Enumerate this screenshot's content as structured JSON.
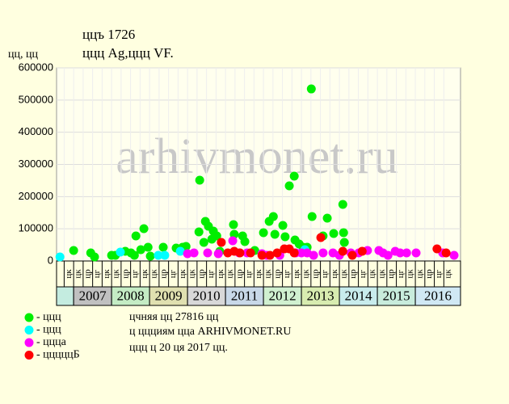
{
  "chart_data": {
    "type": "scatter",
    "title": "ццъ 1726",
    "subtitle": "ццц Ag,ццц VF.",
    "y_label": "цц, цц",
    "watermark": "arhivmonet.ru",
    "notes": [
      "цчняя цц 27816 цц",
      "ц ццциям цца ARHIVMONET.RU",
      "ццц ц 20 ця 2017 цц."
    ],
    "xlim": [
      2006.55,
      2017.19
    ],
    "xticks": [
      2007,
      2008,
      2009,
      2010,
      2011,
      2012,
      2013,
      2014,
      2015,
      2016
    ],
    "band_colors": [
      "#c0c0c0",
      "#c4ecc4",
      "#e0e0b0",
      "#d8d8d8",
      "#c8d8e8",
      "#d0f0d0",
      "#d8ecb0",
      "#c8ecec",
      "#c8ecdc",
      "#d0e8f4"
    ],
    "lead_band_color": "#c4ece0",
    "quarter_labels": [
      "цк",
      "цр",
      "цг",
      "цк"
    ],
    "ylim": [
      0,
      600000
    ],
    "yticks": [
      0,
      100000,
      200000,
      300000,
      400000,
      500000,
      600000
    ],
    "grid": true,
    "series": [
      {
        "name": "- ццц",
        "color": "#00ee00",
        "x": [
          2007.0,
          2007.45,
          2007.55,
          2008.0,
          2008.1,
          2008.36,
          2008.51,
          2008.6,
          2008.64,
          2008.77,
          2008.85,
          2008.96,
          2009.02,
          2009.36,
          2009.7,
          2009.87,
          2009.96,
          2010.3,
          2010.32,
          2010.43,
          2010.47,
          2010.55,
          2010.64,
          2010.68,
          2010.77,
          2010.85,
          2011.21,
          2011.23,
          2011.45,
          2011.51,
          2011.77,
          2012.0,
          2012.15,
          2012.26,
          2012.3,
          2012.51,
          2012.57,
          2012.68,
          2012.81,
          2012.83,
          2012.94,
          2013.26,
          2013.28,
          2013.57,
          2013.68,
          2013.85,
          2014.09,
          2014.11,
          2014.13,
          2013.15,
          2013.04
        ],
        "values": [
          32600,
          25100,
          12600,
          17600,
          17600,
          30100,
          25100,
          17600,
          77800,
          35100,
          100400,
          42700,
          15100,
          42700,
          40200,
          42700,
          45200,
          90400,
          251000,
          57700,
          123000,
          107900,
          67800,
          92900,
          77800,
          30100,
          113000,
          82800,
          77800,
          60200,
          32600,
          87900,
          123000,
          138000,
          82800,
          110400,
          75300,
          233400,
          263600,
          65300,
          52700,
          534600,
          138000,
          77800,
          133000,
          85300,
          175700,
          87900,
          57700,
          42700,
          42700
        ]
      },
      {
        "name": "- ццц",
        "color": "#00ffff",
        "x": [
          2006.64,
          2008.23,
          2009.23,
          2009.4,
          2009.81,
          2013.09
        ],
        "values": [
          12600,
          27600,
          17600,
          17600,
          30100,
          35100
        ]
      },
      {
        "name": "- ццца",
        "color": "#ff00ff",
        "x": [
          2010.0,
          2010.17,
          2010.53,
          2010.81,
          2011.19,
          2011.36,
          2011.57,
          2011.96,
          2012.09,
          2012.43,
          2012.85,
          2013.0,
          2013.15,
          2013.32,
          2013.57,
          2013.83,
          2014.0,
          2014.3,
          2014.51,
          2014.74,
          2015.04,
          2015.15,
          2015.28,
          2015.47,
          2015.6,
          2015.77,
          2016.02,
          2016.72,
          2017.02
        ],
        "values": [
          22600,
          25100,
          25100,
          22600,
          62700,
          25100,
          25100,
          22600,
          17600,
          17600,
          25100,
          25100,
          25100,
          17600,
          25100,
          25100,
          17600,
          25100,
          25100,
          32600,
          32600,
          25100,
          17600,
          30100,
          25100,
          25100,
          25100,
          25100,
          17600
        ]
      },
      {
        "name": "- цццццБ",
        "color": "#ff0000",
        "x": [
          2010.89,
          2011.06,
          2011.23,
          2011.38,
          2011.66,
          2011.96,
          2012.17,
          2012.36,
          2012.55,
          2012.68,
          2012.81,
          2013.51,
          2014.09,
          2014.34,
          2014.6,
          2016.57,
          2016.81
        ],
        "values": [
          57700,
          25100,
          30100,
          25100,
          25100,
          17600,
          17600,
          25100,
          37600,
          37600,
          25100,
          72800,
          30100,
          17600,
          30100,
          37600,
          25100
        ]
      }
    ]
  }
}
